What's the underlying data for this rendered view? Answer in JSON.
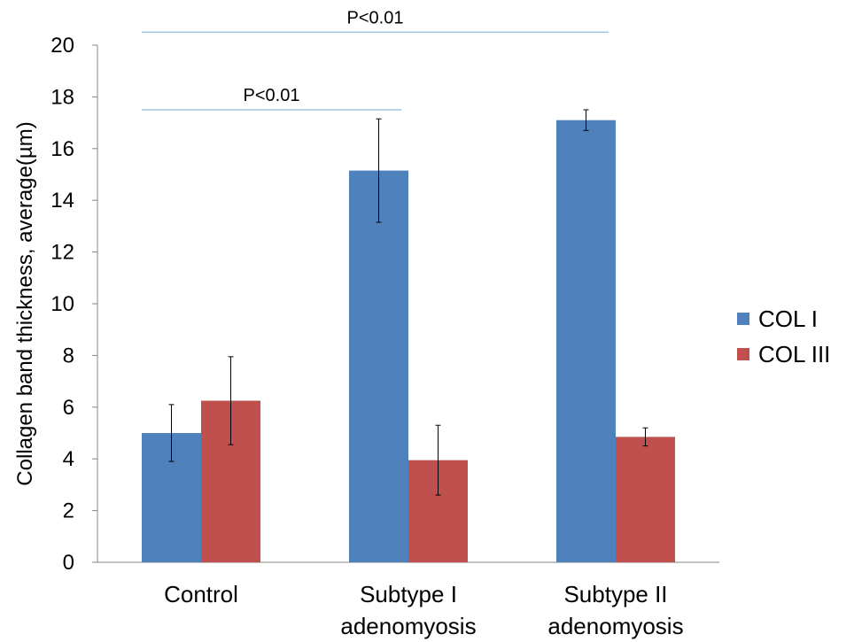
{
  "chart_data": {
    "type": "bar",
    "ylabel": "Collagen band thickness, average(µm)",
    "xlabel": "",
    "ylim": [
      0,
      20
    ],
    "yticks": [
      0,
      2,
      4,
      6,
      8,
      10,
      12,
      14,
      16,
      18,
      20
    ],
    "categories": [
      [
        "Control"
      ],
      [
        "Subtype I",
        "adenomyosis"
      ],
      [
        "Subtype II",
        "adenomyosis"
      ]
    ],
    "series": [
      {
        "name": "COL I",
        "color": "#4f81bd",
        "values": [
          5.0,
          15.15,
          17.1
        ],
        "errors": [
          1.1,
          2.0,
          0.4
        ]
      },
      {
        "name": "COL III",
        "color": "#c0504d",
        "values": [
          6.25,
          3.95,
          4.85
        ],
        "errors": [
          1.7,
          1.35,
          0.35
        ]
      }
    ],
    "legend_position": "right",
    "annotations": [
      {
        "text": "P<0.01",
        "from_category": 0,
        "to_category": 1,
        "y": 17.5
      },
      {
        "text": "P<0.01",
        "from_category": 0,
        "to_category": 2,
        "y": 20.5
      }
    ],
    "annotation_line_color": "#9dc3e6"
  }
}
